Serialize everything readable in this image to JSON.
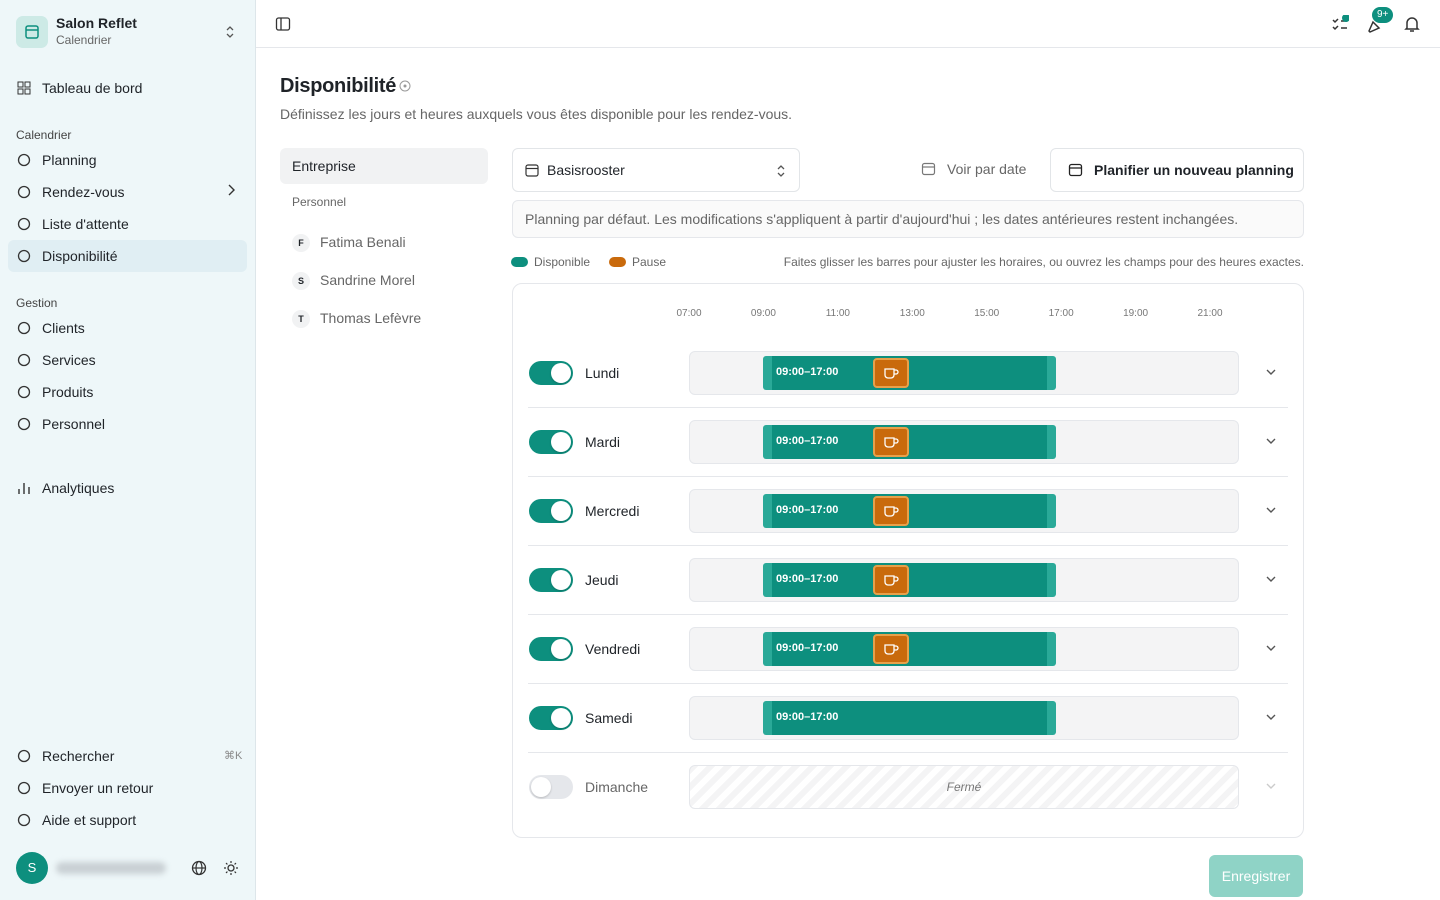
{
  "sidebar": {
    "org": "Salon Reflet",
    "org_sub": "Calendrier",
    "dashboard": "Tableau de bord",
    "sections": [
      {
        "title": "Calendrier",
        "items": [
          "Planning",
          "Rendez-vous",
          "Liste d'attente",
          "Disponibilité"
        ]
      },
      {
        "title": "Gestion",
        "items": [
          "Clients",
          "Services",
          "Produits",
          "Personnel"
        ]
      }
    ],
    "analytics": "Analytiques",
    "footer": [
      "Rechercher",
      "Envoyer un retour",
      "Aide et support"
    ],
    "shortcut": "⌘K",
    "avatar": "S"
  },
  "topbar": {
    "badge": "9+"
  },
  "header": {
    "title": "Disponibilité",
    "subtitle": "Définissez les jours et heures auxquels vous êtes disponible pour les rendez-vous."
  },
  "scope": {
    "active": "Entreprise",
    "group": "Personnel",
    "staff": [
      {
        "initial": "F",
        "name": "Fatima Benali"
      },
      {
        "initial": "S",
        "name": "Sandrine Morel"
      },
      {
        "initial": "T",
        "name": "Thomas Lefèvre"
      }
    ]
  },
  "toolbar": {
    "schedule": "Basisrooster",
    "view_by_date": "Voir par date",
    "new_schedule": "Planifier un nouveau planning"
  },
  "notice": "Planning par défaut. Les modifications s'appliquent à partir d'aujourd'hui ; les dates antérieures restent inchangées.",
  "legend": {
    "available": "Disponible",
    "pause": "Pause",
    "hint": "Faites glisser les barres pour ajuster les horaires, ou ouvrez les champs pour des heures exactes."
  },
  "timeline": {
    "hours": [
      "07:00",
      "09:00",
      "11:00",
      "13:00",
      "15:00",
      "17:00",
      "19:00",
      "21:00"
    ],
    "days": [
      {
        "name": "Lundi",
        "enabled": true,
        "range": "09:00–17:00",
        "pause": true
      },
      {
        "name": "Mardi",
        "enabled": true,
        "range": "09:00–17:00",
        "pause": true
      },
      {
        "name": "Mercredi",
        "enabled": true,
        "range": "09:00–17:00",
        "pause": true
      },
      {
        "name": "Jeudi",
        "enabled": true,
        "range": "09:00–17:00",
        "pause": true
      },
      {
        "name": "Vendredi",
        "enabled": true,
        "range": "09:00–17:00",
        "pause": true
      },
      {
        "name": "Samedi",
        "enabled": true,
        "range": "09:00–17:00",
        "pause": false
      },
      {
        "name": "Dimanche",
        "enabled": false,
        "closed": "Fermé"
      }
    ]
  },
  "save": "Enregistrer"
}
